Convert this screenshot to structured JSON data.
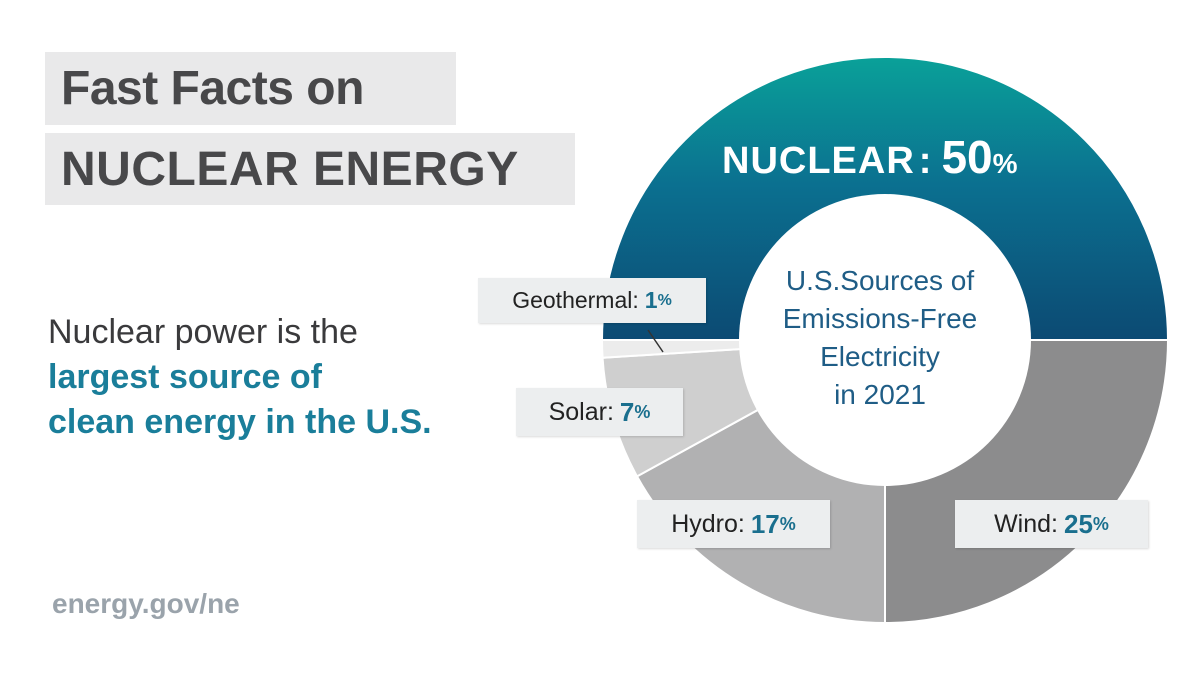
{
  "title": {
    "line1": "Fast Facts on",
    "line2": "NUCLEAR ENERGY"
  },
  "fact": {
    "plain": "Nuclear power is the",
    "highlight1": "largest source of",
    "highlight2": "clean energy in the U.S."
  },
  "footer": {
    "url": "energy.gov/ne"
  },
  "chart_data": {
    "type": "pie",
    "variant": "donut",
    "center_title": [
      "U.S.Sources of",
      "Emissions-Free",
      "Electricity",
      "in 2021"
    ],
    "percent_sign": "%",
    "slices": [
      {
        "name": "NUCLEAR",
        "value": 50,
        "color": "#0d5d82"
      },
      {
        "name": "Wind",
        "value": 25,
        "color": "#8c8c8d"
      },
      {
        "name": "Hydro",
        "value": 17,
        "color": "#b1b1b2"
      },
      {
        "name": "Solar",
        "value": 7,
        "color": "#cfcfcf"
      },
      {
        "name": "Geothermal",
        "value": 1,
        "color": "#ececec"
      }
    ]
  }
}
